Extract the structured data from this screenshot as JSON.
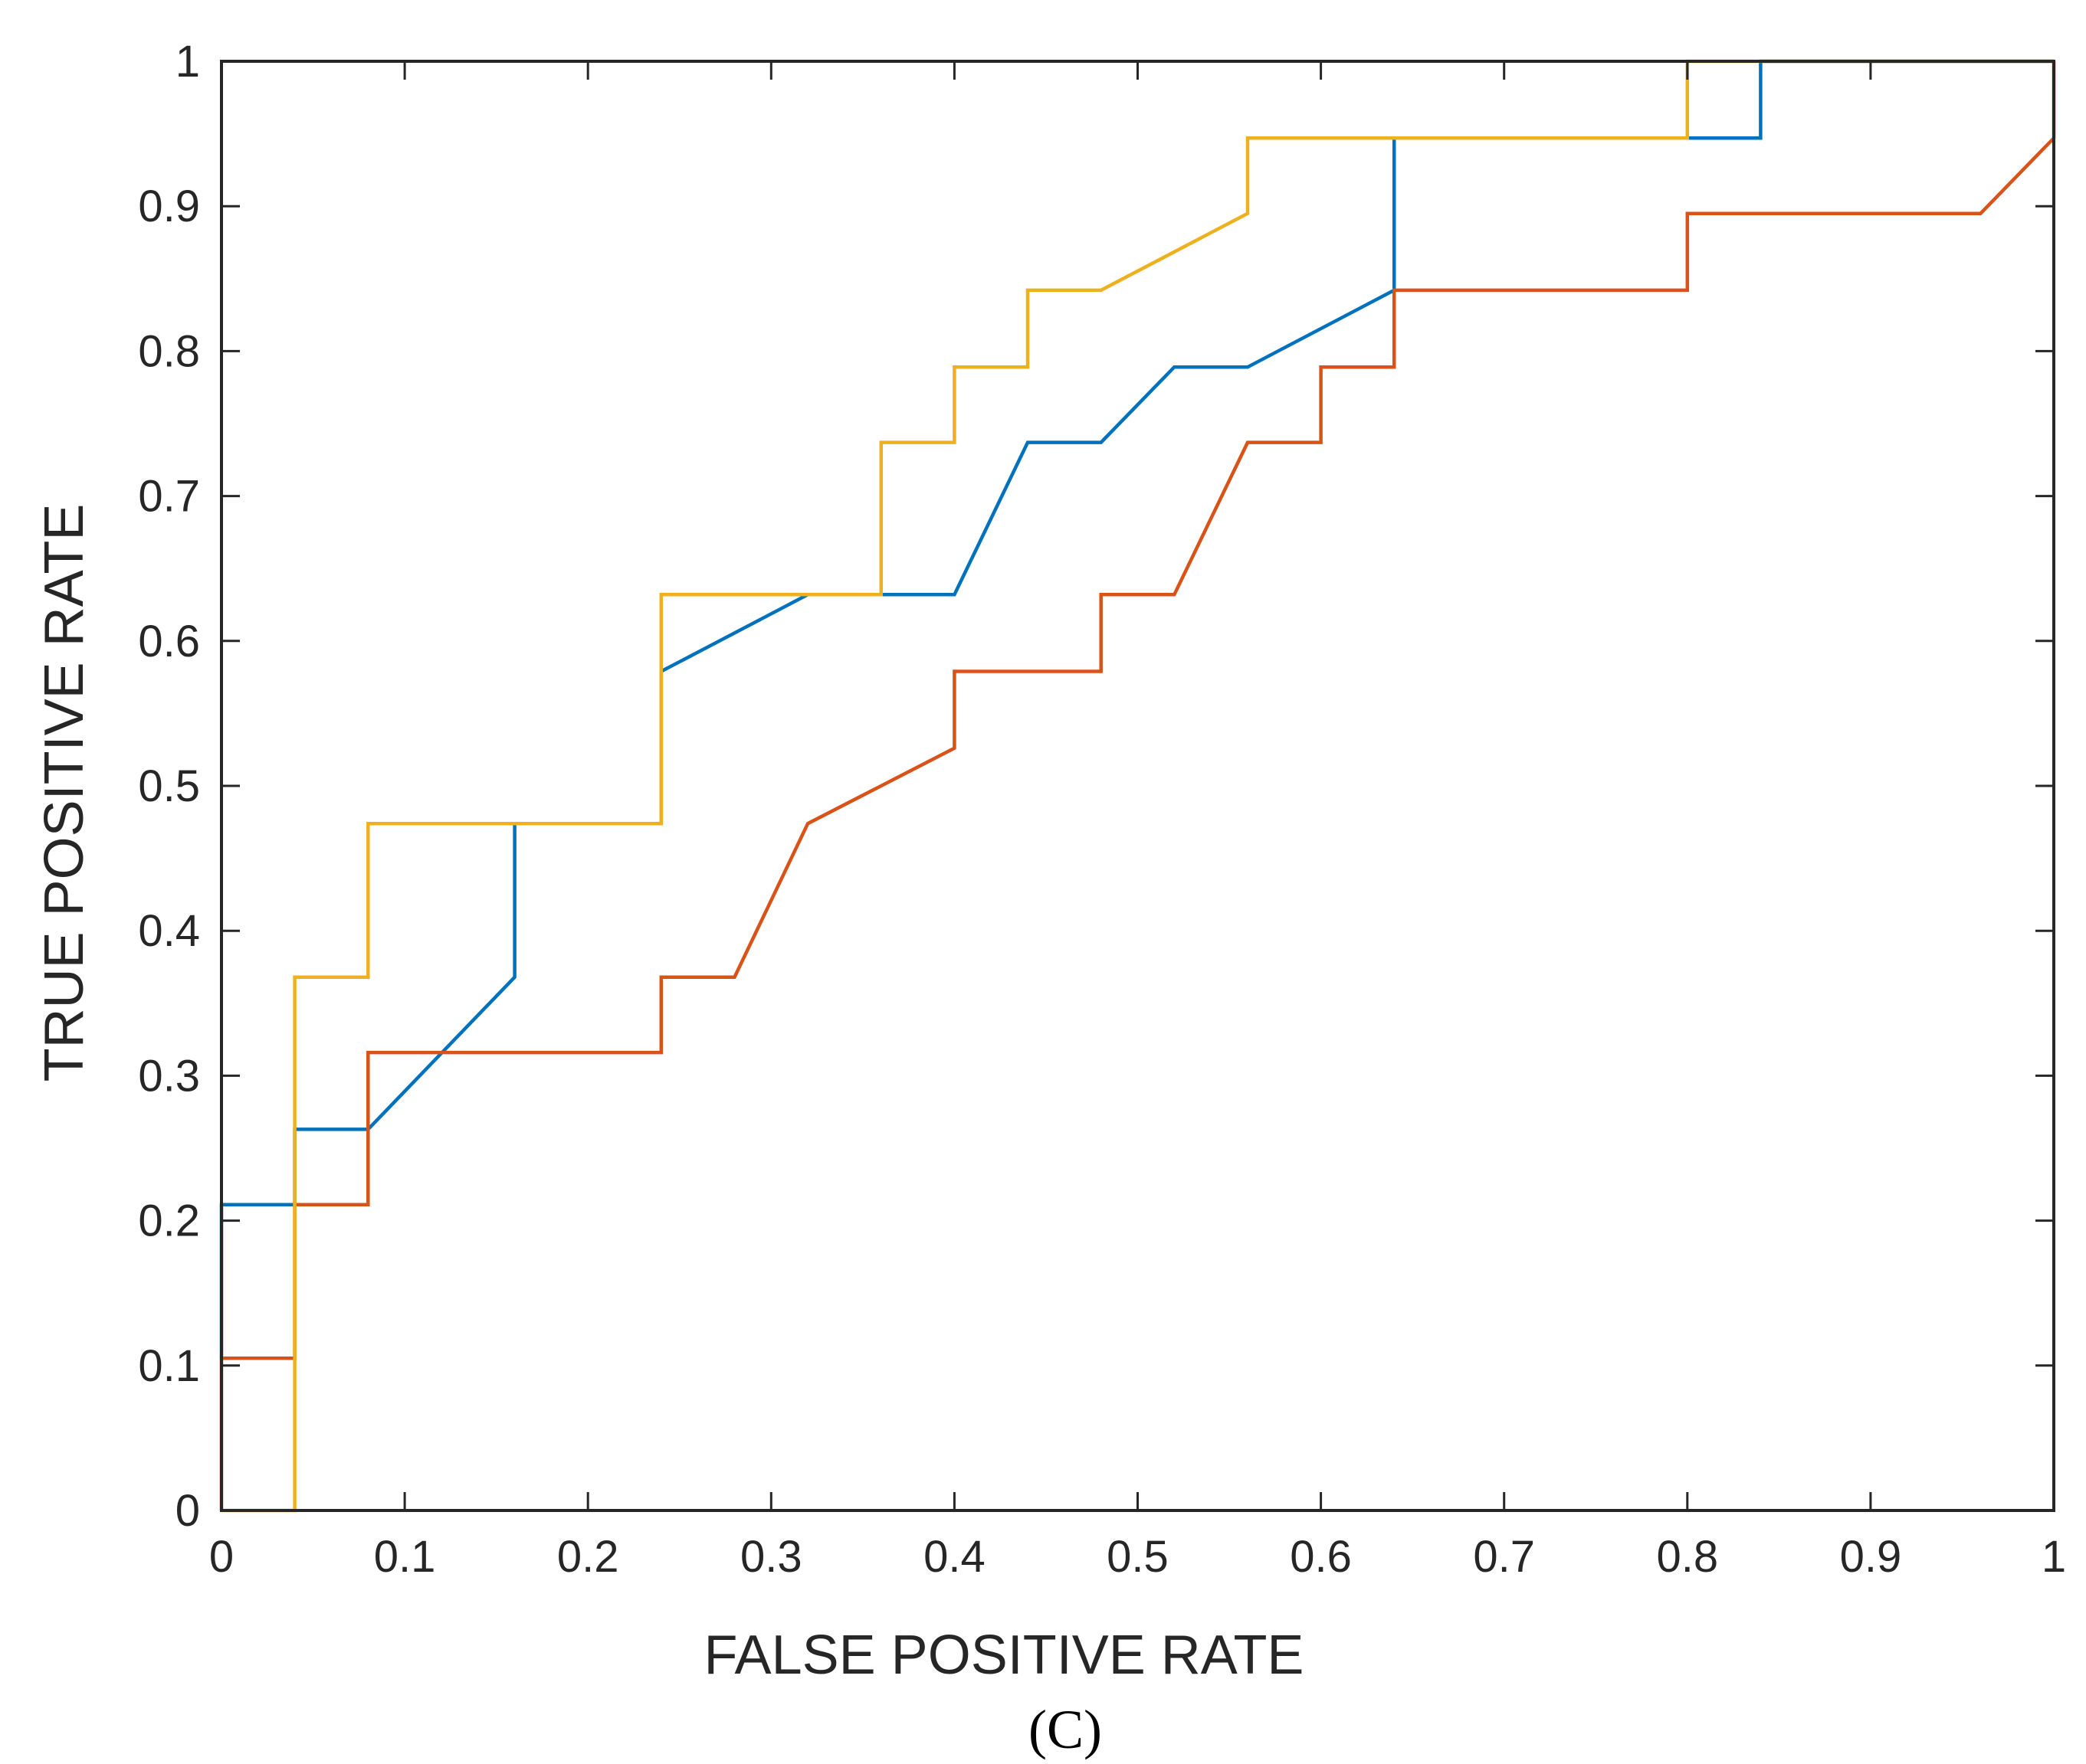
{
  "chart_data": {
    "type": "line",
    "title": "",
    "xlabel": "FALSE POSITIVE RATE",
    "ylabel": "TRUE POSITIVE RATE",
    "xlim": [
      0,
      1
    ],
    "ylim": [
      0,
      1
    ],
    "xticks": [
      0,
      0.1,
      0.2,
      0.3,
      0.4,
      0.5,
      0.6,
      0.7,
      0.8,
      0.9,
      1
    ],
    "yticks": [
      0,
      0.1,
      0.2,
      0.3,
      0.4,
      0.5,
      0.6,
      0.7,
      0.8,
      0.9,
      1
    ],
    "xtick_labels": [
      "0",
      "0.1",
      "0.2",
      "0.3",
      "0.4",
      "0.5",
      "0.6",
      "0.7",
      "0.8",
      "0.9",
      "1"
    ],
    "ytick_labels": [
      "0",
      "0.1",
      "0.2",
      "0.3",
      "0.4",
      "0.5",
      "0.6",
      "0.7",
      "0.8",
      "0.9",
      "1"
    ],
    "grid": false,
    "legend": "none",
    "caption": "(C)",
    "series": [
      {
        "color": "#0072BD",
        "points": [
          [
            0,
            0.105
          ],
          [
            0,
            0.211
          ],
          [
            0.04,
            0.211
          ],
          [
            0.04,
            0.263
          ],
          [
            0.08,
            0.263
          ],
          [
            0.16,
            0.368
          ],
          [
            0.16,
            0.474
          ],
          [
            0.24,
            0.474
          ],
          [
            0.24,
            0.579
          ],
          [
            0.32,
            0.632
          ],
          [
            0.4,
            0.632
          ],
          [
            0.44,
            0.737
          ],
          [
            0.48,
            0.737
          ],
          [
            0.52,
            0.789
          ],
          [
            0.56,
            0.789
          ],
          [
            0.64,
            0.842
          ],
          [
            0.64,
            0.947
          ],
          [
            0.8,
            0.947
          ],
          [
            0.84,
            0.947
          ],
          [
            0.84,
            1
          ],
          [
            1,
            1
          ]
        ]
      },
      {
        "color": "#D95319",
        "points": [
          [
            0,
            0
          ],
          [
            0,
            0.105
          ],
          [
            0.04,
            0.105
          ],
          [
            0.04,
            0.211
          ],
          [
            0.08,
            0.211
          ],
          [
            0.08,
            0.316
          ],
          [
            0.24,
            0.316
          ],
          [
            0.24,
            0.368
          ],
          [
            0.28,
            0.368
          ],
          [
            0.32,
            0.474
          ],
          [
            0.4,
            0.526
          ],
          [
            0.4,
            0.579
          ],
          [
            0.48,
            0.579
          ],
          [
            0.48,
            0.632
          ],
          [
            0.52,
            0.632
          ],
          [
            0.56,
            0.737
          ],
          [
            0.6,
            0.737
          ],
          [
            0.6,
            0.789
          ],
          [
            0.64,
            0.789
          ],
          [
            0.64,
            0.842
          ],
          [
            0.8,
            0.842
          ],
          [
            0.8,
            0.895
          ],
          [
            0.96,
            0.895
          ],
          [
            1,
            0.947
          ],
          [
            1,
            1
          ]
        ]
      },
      {
        "color": "#EDB120",
        "points": [
          [
            0,
            0
          ],
          [
            0.04,
            0
          ],
          [
            0.04,
            0.368
          ],
          [
            0.08,
            0.368
          ],
          [
            0.08,
            0.474
          ],
          [
            0.24,
            0.474
          ],
          [
            0.24,
            0.632
          ],
          [
            0.36,
            0.632
          ],
          [
            0.36,
            0.737
          ],
          [
            0.4,
            0.737
          ],
          [
            0.4,
            0.789
          ],
          [
            0.44,
            0.789
          ],
          [
            0.44,
            0.842
          ],
          [
            0.48,
            0.842
          ],
          [
            0.56,
            0.895
          ],
          [
            0.56,
            0.947
          ],
          [
            0.8,
            0.947
          ],
          [
            0.8,
            1
          ],
          [
            1,
            1
          ]
        ]
      }
    ]
  }
}
